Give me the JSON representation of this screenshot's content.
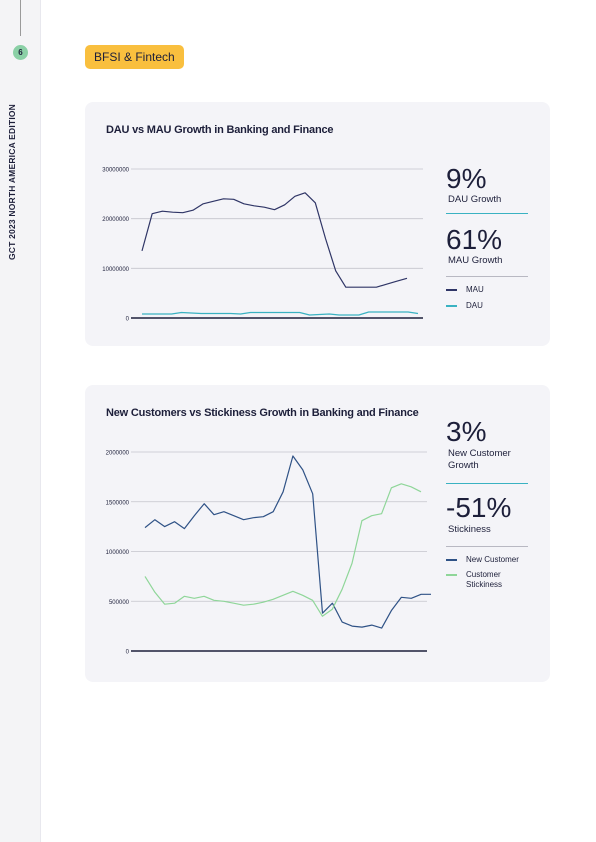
{
  "sidebar": {
    "page_number": "6",
    "edition": "GCT 2023  NORTH  AMERICA EDITION"
  },
  "tag": "BFSI & Fintech",
  "chart1": {
    "title": "DAU vs MAU Growth in Banking and Finance",
    "stat1": {
      "value": "9%",
      "label": "DAU Growth"
    },
    "stat2": {
      "value": "61%",
      "label": "MAU Growth"
    },
    "legend": [
      "MAU",
      "DAU"
    ],
    "colors": {
      "MAU": "#2f3566",
      "DAU": "#3ab2c2"
    }
  },
  "chart2": {
    "title": "New Customers vs Stickiness Growth in Banking and Finance",
    "stat1": {
      "value": "3%",
      "label": "New Customer Growth"
    },
    "stat2": {
      "value": "-51%",
      "label": "Stickiness"
    },
    "legend": [
      "New Customer",
      "Customer Stickiness"
    ],
    "colors": {
      "New Customer": "#2f5286",
      "Customer Stickiness": "#8fd699"
    }
  },
  "chart_data": [
    {
      "type": "line",
      "title": "DAU vs MAU Growth in Banking and Finance",
      "ylim": [
        0,
        30000000
      ],
      "yticks": [
        "0",
        "10000000",
        "20000000",
        "30000000"
      ],
      "grid": true,
      "legend_position": "right",
      "series": [
        {
          "name": "MAU",
          "values": [
            13500000,
            21000000,
            21500000,
            21300000,
            21200000,
            21700000,
            23000000,
            23500000,
            24000000,
            23900000,
            23000000,
            22600000,
            22300000,
            21800000,
            22800000,
            24500000,
            25200000,
            23200000,
            16000000,
            9500000,
            6200000,
            6200000,
            6200000,
            6200000,
            6800000,
            7400000,
            8000000
          ]
        },
        {
          "name": "DAU",
          "values": [
            800000,
            800000,
            800000,
            800000,
            1100000,
            1000000,
            900000,
            900000,
            900000,
            900000,
            800000,
            1100000,
            1100000,
            1100000,
            1100000,
            1100000,
            1100000,
            600000,
            700000,
            800000,
            600000,
            600000,
            600000,
            1200000,
            1200000,
            1200000,
            1200000,
            1200000,
            900000
          ]
        }
      ]
    },
    {
      "type": "line",
      "title": "New Customers vs Stickiness Growth in Banking and Finance",
      "ylim": [
        0,
        2000000
      ],
      "yticks": [
        "0",
        "500000",
        "1000000",
        "1500000",
        "2000000"
      ],
      "grid": true,
      "legend_position": "right",
      "series": [
        {
          "name": "New Customer",
          "values": [
            1240000,
            1320000,
            1250000,
            1300000,
            1230000,
            1360000,
            1480000,
            1370000,
            1400000,
            1360000,
            1320000,
            1340000,
            1350000,
            1400000,
            1600000,
            1960000,
            1820000,
            1580000,
            380000,
            480000,
            290000,
            250000,
            240000,
            260000,
            230000,
            410000,
            540000,
            530000,
            570000,
            570000
          ]
        },
        {
          "name": "Customer Stickiness",
          "values": [
            750000,
            590000,
            470000,
            480000,
            550000,
            530000,
            550000,
            510000,
            500000,
            480000,
            460000,
            470000,
            490000,
            520000,
            560000,
            600000,
            560000,
            510000,
            350000,
            420000,
            620000,
            880000,
            1310000,
            1360000,
            1380000,
            1640000,
            1680000,
            1650000,
            1600000
          ]
        }
      ]
    }
  ]
}
